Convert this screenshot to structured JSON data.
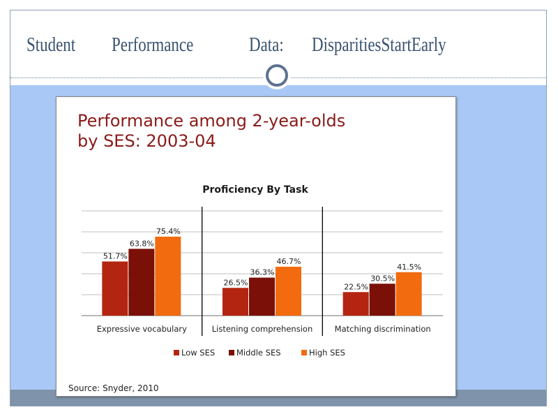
{
  "slide": {
    "title_words": [
      "Student",
      "Performance",
      "Data:",
      "DisparitiesStartEarly"
    ]
  },
  "panel": {
    "heading_lines": [
      "Performance among 2-year-olds",
      "by SES: 2003-04"
    ],
    "source": "Source: Snyder, 2010"
  },
  "chart_data": {
    "type": "bar",
    "title": "Proficiency By Task",
    "categories": [
      "Expressive vocabulary",
      "Listening comprehension",
      "Matching discrimination"
    ],
    "series": [
      {
        "name": "Low SES",
        "values": [
          51.7,
          26.5,
          22.5
        ],
        "labels": [
          "51.7%",
          "26.5%",
          "22.5%"
        ],
        "color": "#b32510"
      },
      {
        "name": "Middle SES",
        "values": [
          63.8,
          36.3,
          30.5
        ],
        "labels": [
          "63.8%",
          "36.3%",
          "30.5%"
        ],
        "color": "#7a1008"
      },
      {
        "name": "High SES",
        "values": [
          75.4,
          46.7,
          41.5
        ],
        "labels": [
          "75.4%",
          "46.7%",
          "41.5%"
        ],
        "color": "#f26b0f"
      }
    ],
    "ylim": [
      0,
      100
    ],
    "grid": true,
    "legend": "bottom",
    "xlabel": "",
    "ylabel": ""
  }
}
